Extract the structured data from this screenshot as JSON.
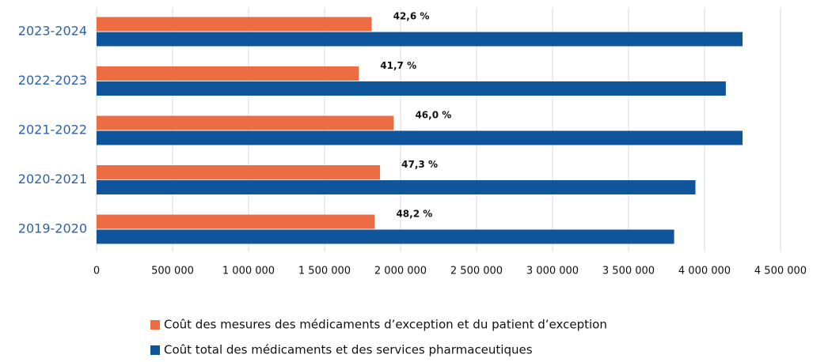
{
  "chart_data": {
    "type": "bar",
    "orientation": "horizontal",
    "categories": [
      "2023-2024",
      "2022-2023",
      "2021-2022",
      "2020-2021",
      "2019-2020"
    ],
    "series": [
      {
        "name": "Coût des mesures des médicaments d’exception et du patient d’exception",
        "color": "#ec6d43",
        "values": [
          1810000,
          1725000,
          1955000,
          1865000,
          1830000
        ]
      },
      {
        "name": "Coût total des médicaments et des services pharmaceutiques",
        "color": "#0f559b",
        "values": [
          4250000,
          4140000,
          4250000,
          3940000,
          3800000
        ]
      }
    ],
    "annotations": [
      "42,6 %",
      "41,7 %",
      "46,0 %",
      "47,3 %",
      "48,2 %"
    ],
    "xlim": [
      0,
      4500000
    ],
    "xticks": [
      0,
      {
        "value": 500000,
        "label": "500 000"
      },
      {
        "value": 1000000,
        "label": "1 000 000"
      },
      {
        "value": 1500000,
        "label": "1 500 000"
      },
      {
        "value": 2000000,
        "label": "2 000 000"
      },
      {
        "value": 2500000,
        "label": "2 500 000"
      },
      {
        "value": 3000000,
        "label": "3 000 000"
      },
      {
        "value": 3500000,
        "label": "3 500 000"
      },
      {
        "value": 4000000,
        "label": "4 000 000"
      },
      {
        "value": 4500000,
        "label": "4 500 000"
      }
    ],
    "grid": true,
    "legend": "bottom"
  }
}
